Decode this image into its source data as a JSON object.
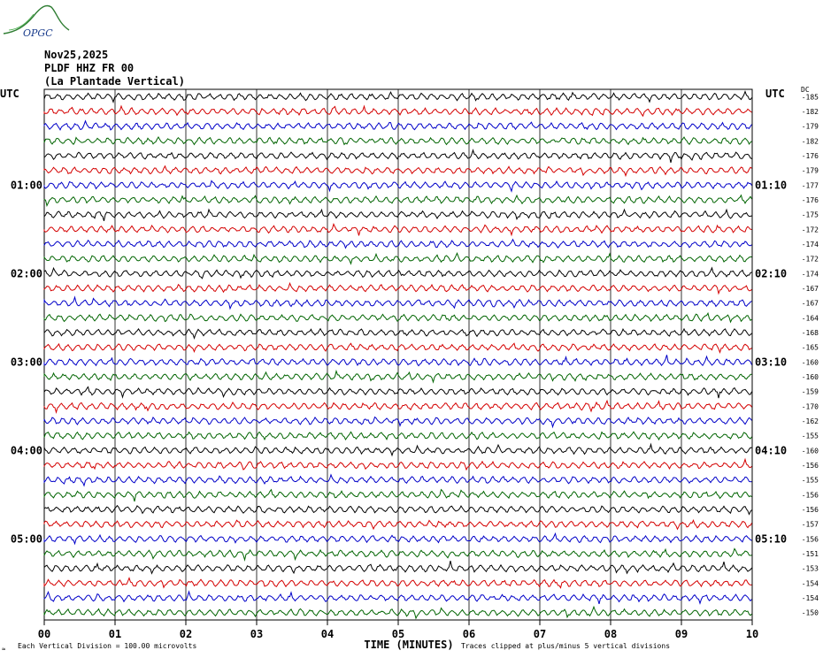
{
  "logo": {
    "text": "OPGC"
  },
  "header": {
    "date": "Nov25,2025",
    "station": "PLDF HHZ FR 00",
    "location": "(La Plantade Vertical)"
  },
  "chart_data": {
    "type": "line",
    "left_axis_title": "UTC",
    "right_axis_title": "UTC",
    "dc_title": "DC",
    "left_time_labels": [
      {
        "row": 6,
        "label": "01:00"
      },
      {
        "row": 12,
        "label": "02:00"
      },
      {
        "row": 18,
        "label": "03:00"
      },
      {
        "row": 24,
        "label": "04:00"
      },
      {
        "row": 30,
        "label": "05:00"
      }
    ],
    "right_time_labels": [
      {
        "row": 6,
        "label": "01:10"
      },
      {
        "row": 12,
        "label": "02:10"
      },
      {
        "row": 18,
        "label": "03:10"
      },
      {
        "row": 24,
        "label": "04:10"
      },
      {
        "row": 30,
        "label": "05:10"
      }
    ],
    "dc_offsets": [
      "-185",
      "-182",
      "-179",
      "-182",
      "-176",
      "-179",
      "-177",
      "-176",
      "-175",
      "-172",
      "-174",
      "-172",
      "-174",
      "-167",
      "-167",
      "-164",
      "-168",
      "-165",
      "-160",
      "-160",
      "-159",
      "-170",
      "-162",
      "-155",
      "-160",
      "-156",
      "-155",
      "-156",
      "-156",
      "-157",
      "-156",
      "-151",
      "-153",
      "-154",
      "-154",
      "-150"
    ],
    "trace_colors": [
      "#000000",
      "#d40000",
      "#0000c8",
      "#006400"
    ],
    "x_ticks": [
      "00",
      "01",
      "02",
      "03",
      "04",
      "05",
      "06",
      "07",
      "08",
      "09",
      "10"
    ],
    "xlabel": "TIME (MINUTES)",
    "xlim": [
      0,
      10
    ],
    "grid": true
  },
  "footer": {
    "scale_note": "Each Vertical Division =  100.00 microvolts",
    "clip_note": "Traces clipped at plus/minus 5 vertical divisions"
  }
}
